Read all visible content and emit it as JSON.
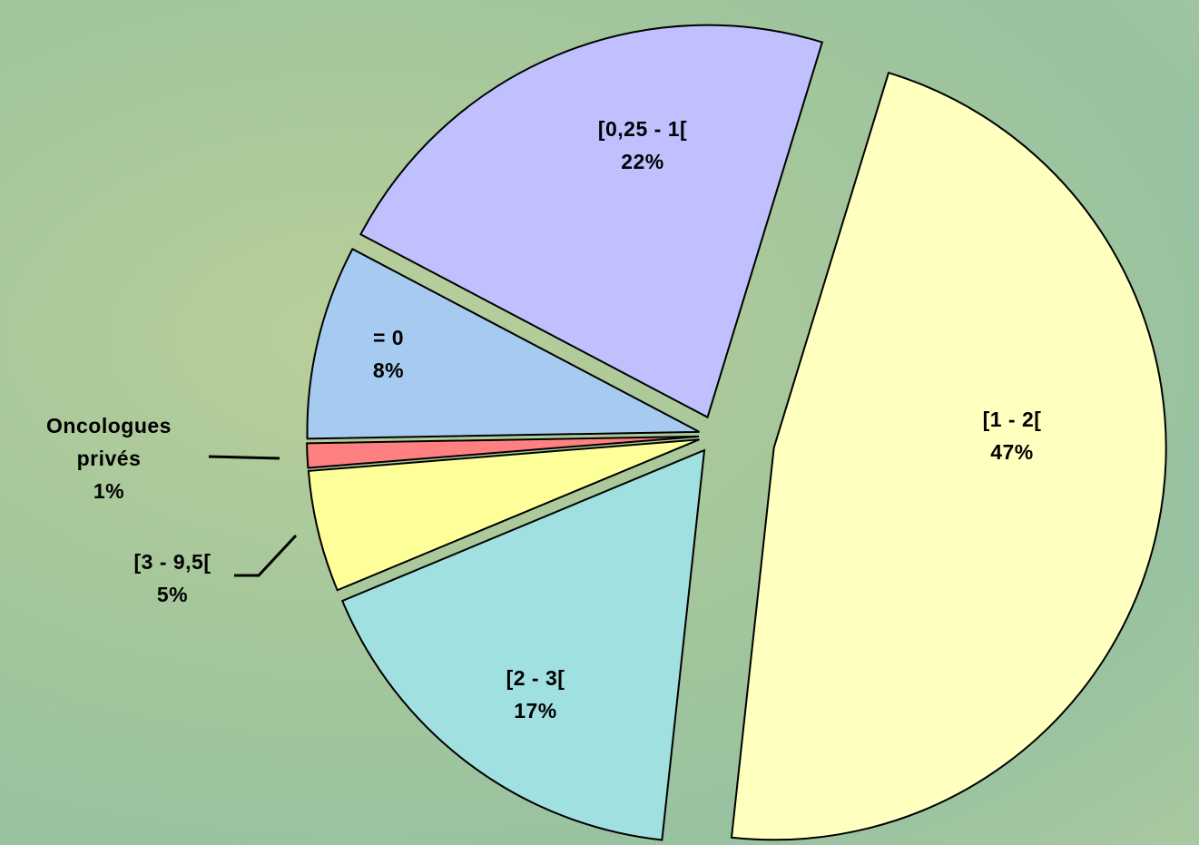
{
  "chart_data": {
    "type": "pie",
    "categories": [
      "[1 - 2[",
      "[2 - 3[",
      "[3 - 9,5[",
      "Oncologues privés",
      "= 0",
      "[0,25 - 1["
    ],
    "values": [
      47,
      17,
      5,
      1,
      8,
      22
    ],
    "value_labels": [
      "47%",
      "17%",
      "5%",
      "1%",
      "8%",
      "22%"
    ],
    "colors": [
      "#ffffc0",
      "#a0e0e0",
      "#ffff99",
      "#ff8080",
      "#a6caf0",
      "#c0c0ff"
    ]
  }
}
